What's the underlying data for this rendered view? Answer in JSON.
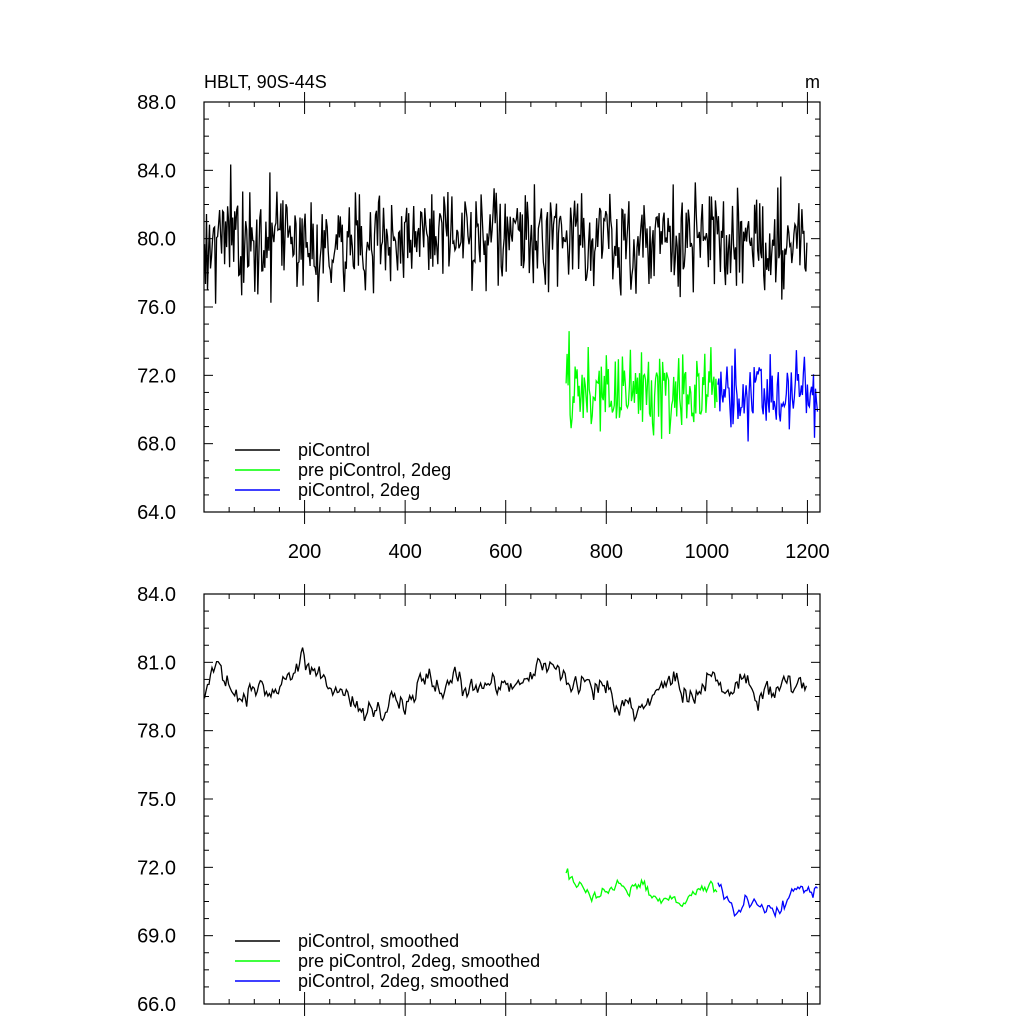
{
  "chart_data": [
    {
      "type": "line",
      "title": "HBLT, 90S-44S",
      "units": "m",
      "xlim": [
        0,
        1225
      ],
      "ylim": [
        64,
        88
      ],
      "xticks": [
        200,
        400,
        600,
        800,
        1000,
        1200
      ],
      "xtick_labels": [
        "200",
        "400",
        "600",
        "800",
        "1000",
        "1200"
      ],
      "yticks": [
        64,
        68,
        72,
        76,
        80,
        84,
        88
      ],
      "ytick_labels": [
        "64.0",
        "68.0",
        "72.0",
        "76.0",
        "80.0",
        "84.0",
        "88.0"
      ],
      "grid": false,
      "legend_position": "bottom-left",
      "series": [
        {
          "name": "piControl",
          "color": "#000000",
          "x": [
            1,
            25,
            50,
            75,
            100,
            125,
            150,
            175,
            200,
            225,
            250,
            275,
            300,
            325,
            350,
            375,
            400,
            425,
            450,
            475,
            500,
            525,
            550,
            575,
            600,
            625,
            650,
            675,
            700,
            725,
            750,
            775,
            800,
            825,
            850,
            875,
            900,
            925,
            950,
            975,
            1000,
            1025,
            1050,
            1075,
            1100,
            1125,
            1150,
            1175,
            1200
          ],
          "values": [
            80.2,
            79.8,
            80.5,
            79.4,
            80.1,
            79.6,
            80.3,
            79.9,
            80.4,
            79.5,
            80.0,
            79.7,
            80.2,
            79.3,
            79.9,
            80.1,
            79.6,
            80.3,
            79.8,
            80.0,
            79.5,
            80.2,
            79.7,
            80.1,
            79.9,
            80.4,
            79.6,
            80.0,
            80.3,
            79.8,
            80.1,
            79.6,
            80.2,
            79.4,
            79.9,
            80.1,
            79.5,
            80.3,
            79.8,
            80.0,
            79.6,
            80.2,
            79.7,
            79.9,
            80.1,
            79.5,
            80.0,
            79.8,
            79.9
          ],
          "noise_amplitude": 2.2
        },
        {
          "name": "pre piControl, 2deg",
          "color": "#00ff00",
          "x": [
            720,
            745,
            770,
            795,
            820,
            845,
            870,
            895,
            920,
            945,
            970,
            995,
            1020
          ],
          "values": [
            71.5,
            71.0,
            70.8,
            71.2,
            70.9,
            71.4,
            71.1,
            70.7,
            71.3,
            70.9,
            71.2,
            70.8,
            71.0
          ],
          "noise_amplitude": 1.9
        },
        {
          "name": "piControl, 2deg",
          "color": "#0000ff",
          "x": [
            1022,
            1040,
            1060,
            1080,
            1100,
            1120,
            1140,
            1160,
            1180,
            1200,
            1220
          ],
          "values": [
            71.0,
            70.6,
            70.9,
            70.3,
            70.7,
            70.5,
            70.8,
            70.4,
            71.0,
            71.2,
            70.9
          ],
          "noise_amplitude": 1.7
        }
      ]
    },
    {
      "type": "line",
      "xlim": [
        0,
        1225
      ],
      "ylim": [
        66,
        84
      ],
      "xticks": [
        200,
        400,
        600,
        800,
        1000,
        1200
      ],
      "yticks": [
        66,
        69,
        72,
        75,
        78,
        81,
        84
      ],
      "ytick_labels": [
        "66.0",
        "69.0",
        "72.0",
        "75.0",
        "78.0",
        "81.0",
        "84.0"
      ],
      "grid": false,
      "legend_position": "bottom-left",
      "series": [
        {
          "name": "piControl, smoothed",
          "color": "#000000",
          "x": [
            1,
            25,
            50,
            75,
            100,
            125,
            150,
            175,
            200,
            225,
            250,
            275,
            300,
            325,
            350,
            375,
            400,
            425,
            450,
            475,
            500,
            525,
            550,
            575,
            600,
            625,
            650,
            675,
            700,
            725,
            750,
            775,
            800,
            825,
            850,
            875,
            900,
            925,
            950,
            975,
            1000,
            1025,
            1050,
            1075,
            1100,
            1125,
            1150,
            1175,
            1200
          ],
          "values": [
            79.6,
            80.6,
            80.3,
            79.4,
            80.2,
            80.0,
            79.8,
            80.7,
            81.2,
            80.5,
            80.1,
            79.9,
            79.3,
            78.6,
            78.9,
            79.8,
            79.2,
            80.3,
            80.1,
            79.9,
            80.5,
            79.6,
            79.8,
            80.2,
            80.0,
            79.8,
            80.6,
            81.0,
            80.8,
            80.2,
            79.9,
            79.8,
            80.1,
            79.5,
            78.9,
            79.2,
            79.8,
            80.2,
            80.0,
            79.6,
            80.4,
            79.7,
            79.5,
            80.2,
            79.8,
            79.6,
            80.1,
            80.0,
            79.5
          ],
          "noise_amplitude": 0.8
        },
        {
          "name": "pre piControl, 2deg, smoothed",
          "color": "#00ff00",
          "x": [
            720,
            745,
            770,
            795,
            820,
            845,
            870,
            895,
            920,
            945,
            970,
            995,
            1020
          ],
          "values": [
            71.8,
            71.2,
            70.7,
            71.0,
            71.3,
            70.9,
            71.2,
            70.6,
            70.8,
            70.4,
            71.0,
            71.3,
            71.0
          ],
          "noise_amplitude": 0.45
        },
        {
          "name": "piControl, 2deg, smoothed",
          "color": "#0000ff",
          "x": [
            1022,
            1040,
            1060,
            1080,
            1100,
            1120,
            1140,
            1160,
            1180,
            1200,
            1220
          ],
          "values": [
            71.6,
            70.6,
            70.2,
            70.5,
            70.4,
            70.1,
            70.0,
            70.6,
            71.3,
            70.8,
            71.1
          ],
          "noise_amplitude": 0.45
        }
      ]
    }
  ]
}
